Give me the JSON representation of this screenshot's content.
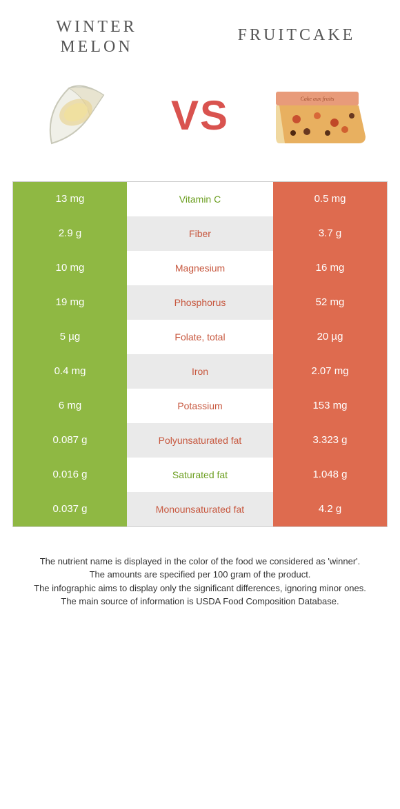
{
  "colors": {
    "left": "#8fb843",
    "right": "#de6b4f",
    "left_text": "#6b9e1f",
    "right_text": "#c7573e"
  },
  "foods": {
    "left": "Winter melon",
    "right": "Fruitcake"
  },
  "vs": "VS",
  "rows": [
    {
      "left": "13 mg",
      "name": "Vitamin C",
      "right": "0.5 mg",
      "winner": "left"
    },
    {
      "left": "2.9 g",
      "name": "Fiber",
      "right": "3.7 g",
      "winner": "right"
    },
    {
      "left": "10 mg",
      "name": "Magnesium",
      "right": "16 mg",
      "winner": "right"
    },
    {
      "left": "19 mg",
      "name": "Phosphorus",
      "right": "52 mg",
      "winner": "right"
    },
    {
      "left": "5 µg",
      "name": "Folate, total",
      "right": "20 µg",
      "winner": "right"
    },
    {
      "left": "0.4 mg",
      "name": "Iron",
      "right": "2.07 mg",
      "winner": "right"
    },
    {
      "left": "6 mg",
      "name": "Potassium",
      "right": "153 mg",
      "winner": "right"
    },
    {
      "left": "0.087 g",
      "name": "Polyunsaturated fat",
      "right": "3.323 g",
      "winner": "right"
    },
    {
      "left": "0.016 g",
      "name": "Saturated fat",
      "right": "1.048 g",
      "winner": "left"
    },
    {
      "left": "0.037 g",
      "name": "Monounsaturated fat",
      "right": "4.2 g",
      "winner": "right"
    }
  ],
  "footer": [
    "The nutrient name is displayed in the color of the food we considered as 'winner'.",
    "The amounts are specified per 100 gram of the product.",
    "The infographic aims to display only the significant differences, ignoring minor ones.",
    "The main source of information is USDA Food Composition Database."
  ]
}
